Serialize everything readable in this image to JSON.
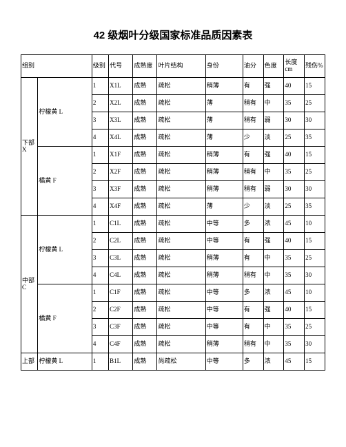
{
  "title": "42 级烟叶分级国家标准品质因素表",
  "columns": {
    "group": "组别",
    "level": "级别",
    "code": "代号",
    "maturity": "成熟度",
    "structure": "叶片结构",
    "identity": "身份",
    "oil": "油分",
    "color": "色度",
    "length": "长度cm",
    "damage": "残伤%"
  },
  "sections": [
    {
      "group_main": "下部X",
      "subgroups": [
        {
          "name": "柠檬黄 L",
          "rows": [
            {
              "lv": "1",
              "code": "X1L",
              "mat": "成熟",
              "str": "疏松",
              "id": "稍薄",
              "oil": "有",
              "col": "强",
              "len": "40",
              "dmg": "15"
            },
            {
              "lv": "2",
              "code": "X2L",
              "mat": "成熟",
              "str": "疏松",
              "id": "薄",
              "oil": "稍有",
              "col": "中",
              "len": "35",
              "dmg": "25"
            },
            {
              "lv": "3",
              "code": "X3L",
              "mat": "成熟",
              "str": "疏松",
              "id": "薄",
              "oil": "稍有",
              "col": "弱",
              "len": "30",
              "dmg": "30"
            },
            {
              "lv": "4",
              "code": "X4L",
              "mat": "成熟",
              "str": "疏松",
              "id": "薄",
              "oil": "少",
              "col": "淡",
              "len": "25",
              "dmg": "35"
            }
          ]
        },
        {
          "name": "橘黄 F",
          "rows": [
            {
              "lv": "1",
              "code": "X1F",
              "mat": "成熟",
              "str": "疏松",
              "id": "稍薄",
              "oil": "有",
              "col": "强",
              "len": "40",
              "dmg": "15"
            },
            {
              "lv": "2",
              "code": "X2F",
              "mat": "成熟",
              "str": "疏松",
              "id": "稍薄",
              "oil": "稍有",
              "col": "中",
              "len": "35",
              "dmg": "25"
            },
            {
              "lv": "3",
              "code": "X3F",
              "mat": "成熟",
              "str": "疏松",
              "id": "稍薄",
              "oil": "稍有",
              "col": "弱",
              "len": "30",
              "dmg": "30"
            },
            {
              "lv": "4",
              "code": "X4F",
              "mat": "成熟",
              "str": "疏松",
              "id": "薄",
              "oil": "少",
              "col": "淡",
              "len": "25",
              "dmg": "35"
            }
          ]
        }
      ]
    },
    {
      "group_main": "中部C",
      "subgroups": [
        {
          "name": "柠檬黄 L",
          "rows": [
            {
              "lv": "1",
              "code": "C1L",
              "mat": "成熟",
              "str": "疏松",
              "id": "中等",
              "oil": "多",
              "col": "浓",
              "len": "45",
              "dmg": "10"
            },
            {
              "lv": "2",
              "code": "C2L",
              "mat": "成熟",
              "str": "疏松",
              "id": "中等",
              "oil": "有",
              "col": "强",
              "len": "40",
              "dmg": "15"
            },
            {
              "lv": "3",
              "code": "C3L",
              "mat": "成熟",
              "str": "疏松",
              "id": "稍薄",
              "oil": "有",
              "col": "中",
              "len": "35",
              "dmg": "25"
            },
            {
              "lv": "4",
              "code": "C4L",
              "mat": "成熟",
              "str": "疏松",
              "id": "稍薄",
              "oil": "稍有",
              "col": "中",
              "len": "35",
              "dmg": "30"
            }
          ]
        },
        {
          "name": "橘黄 F",
          "rows": [
            {
              "lv": "1",
              "code": "C1F",
              "mat": "成熟",
              "str": "疏松",
              "id": "中等",
              "oil": "多",
              "col": "浓",
              "len": "45",
              "dmg": "10"
            },
            {
              "lv": "2",
              "code": "C2F",
              "mat": "成熟",
              "str": "疏松",
              "id": "中等",
              "oil": "有",
              "col": "强",
              "len": "40",
              "dmg": "15"
            },
            {
              "lv": "3",
              "code": "C3F",
              "mat": "成熟",
              "str": "疏松",
              "id": "中等",
              "oil": "有",
              "col": "中",
              "len": "35",
              "dmg": "25"
            },
            {
              "lv": "4",
              "code": "C4F",
              "mat": "成熟",
              "str": "疏松",
              "id": "稍薄",
              "oil": "稍有",
              "col": "中",
              "len": "35",
              "dmg": "30"
            }
          ]
        }
      ]
    },
    {
      "group_main": "上部",
      "subgroups": [
        {
          "name": "柠檬黄 L",
          "rows": [
            {
              "lv": "1",
              "code": "B1L",
              "mat": "成熟",
              "str": "尚疏松",
              "id": "中等",
              "oil": "多",
              "col": "浓",
              "len": "45",
              "dmg": "15"
            }
          ]
        }
      ]
    }
  ]
}
